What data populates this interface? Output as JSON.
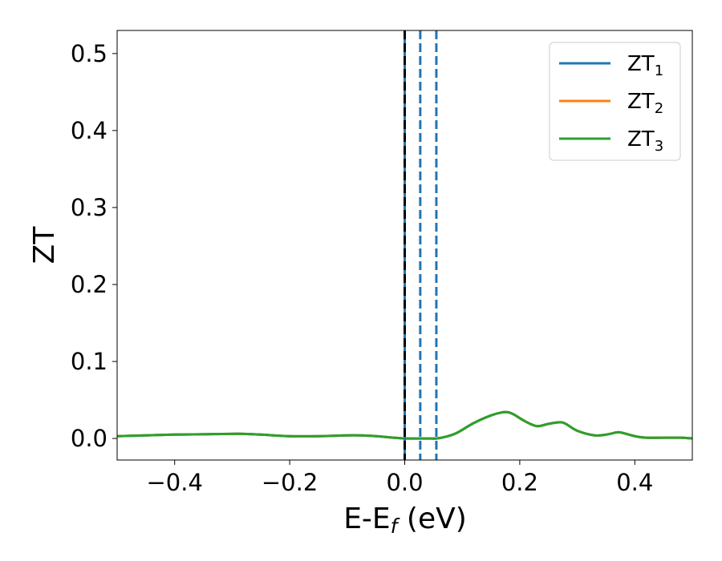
{
  "chart_data": {
    "type": "line",
    "xlabel": {
      "main": "E-E",
      "sub": "f",
      "suffix": " (eV)"
    },
    "ylabel": "ZT",
    "xlim": [
      -0.5,
      0.5
    ],
    "ylim": [
      -0.028,
      0.53
    ],
    "x_ticks": [
      -0.4,
      -0.2,
      0.0,
      0.2,
      0.4
    ],
    "x_tick_labels": [
      "−0.4",
      "−0.2",
      "0.0",
      "0.2",
      "0.4"
    ],
    "y_ticks": [
      0.0,
      0.1,
      0.2,
      0.3,
      0.4,
      0.5
    ],
    "y_tick_labels": [
      "0.0",
      "0.1",
      "0.2",
      "0.3",
      "0.4",
      "0.5"
    ],
    "grid": false,
    "legend_position": "top-right",
    "vlines": [
      {
        "x": 0.0,
        "color": "#1f77b4",
        "style": "solid"
      },
      {
        "x": 0.0,
        "color": "#000000",
        "style": "dashed"
      },
      {
        "x": 0.027,
        "color": "#1f77b4",
        "style": "dashed"
      },
      {
        "x": 0.055,
        "color": "#1f77b4",
        "style": "dashed"
      }
    ],
    "x": [
      -0.5,
      -0.45,
      -0.4,
      -0.35,
      -0.3,
      -0.28,
      -0.25,
      -0.2,
      -0.15,
      -0.1,
      -0.08,
      -0.05,
      -0.02,
      0.0,
      0.02,
      0.04,
      0.055,
      0.07,
      0.09,
      0.12,
      0.15,
      0.17,
      0.18,
      0.19,
      0.21,
      0.23,
      0.25,
      0.27,
      0.28,
      0.3,
      0.33,
      0.35,
      0.37,
      0.38,
      0.4,
      0.42,
      0.45,
      0.48,
      0.5
    ],
    "series": [
      {
        "name": "ZT1",
        "legend_main": "ZT",
        "legend_sub": "1",
        "color": "#1f77b4",
        "values": [
          0.003,
          0.004,
          0.005,
          0.0055,
          0.006,
          0.006,
          0.005,
          0.003,
          0.003,
          0.004,
          0.004,
          0.003,
          0.001,
          0.0,
          0.0,
          0.0,
          0.0,
          0.002,
          0.007,
          0.02,
          0.03,
          0.034,
          0.034,
          0.031,
          0.022,
          0.016,
          0.019,
          0.021,
          0.019,
          0.01,
          0.004,
          0.005,
          0.008,
          0.007,
          0.003,
          0.001,
          0.001,
          0.001,
          0.0
        ]
      },
      {
        "name": "ZT2",
        "legend_main": "ZT",
        "legend_sub": "2",
        "color": "#ff7f0e",
        "values": [
          0.003,
          0.004,
          0.005,
          0.0055,
          0.006,
          0.006,
          0.005,
          0.003,
          0.003,
          0.004,
          0.004,
          0.003,
          0.001,
          0.0,
          0.0,
          0.0,
          0.0,
          0.002,
          0.007,
          0.02,
          0.03,
          0.034,
          0.034,
          0.031,
          0.022,
          0.016,
          0.019,
          0.021,
          0.019,
          0.01,
          0.004,
          0.005,
          0.008,
          0.007,
          0.003,
          0.001,
          0.001,
          0.001,
          0.0
        ]
      },
      {
        "name": "ZT3",
        "legend_main": "ZT",
        "legend_sub": "3",
        "color": "#2ca02c",
        "values": [
          0.003,
          0.004,
          0.005,
          0.0055,
          0.006,
          0.006,
          0.005,
          0.003,
          0.003,
          0.004,
          0.004,
          0.003,
          0.001,
          0.0,
          0.0,
          0.0,
          0.0,
          0.002,
          0.007,
          0.02,
          0.03,
          0.034,
          0.034,
          0.031,
          0.022,
          0.016,
          0.019,
          0.021,
          0.019,
          0.01,
          0.004,
          0.005,
          0.008,
          0.007,
          0.003,
          0.001,
          0.001,
          0.001,
          0.0
        ]
      }
    ]
  }
}
